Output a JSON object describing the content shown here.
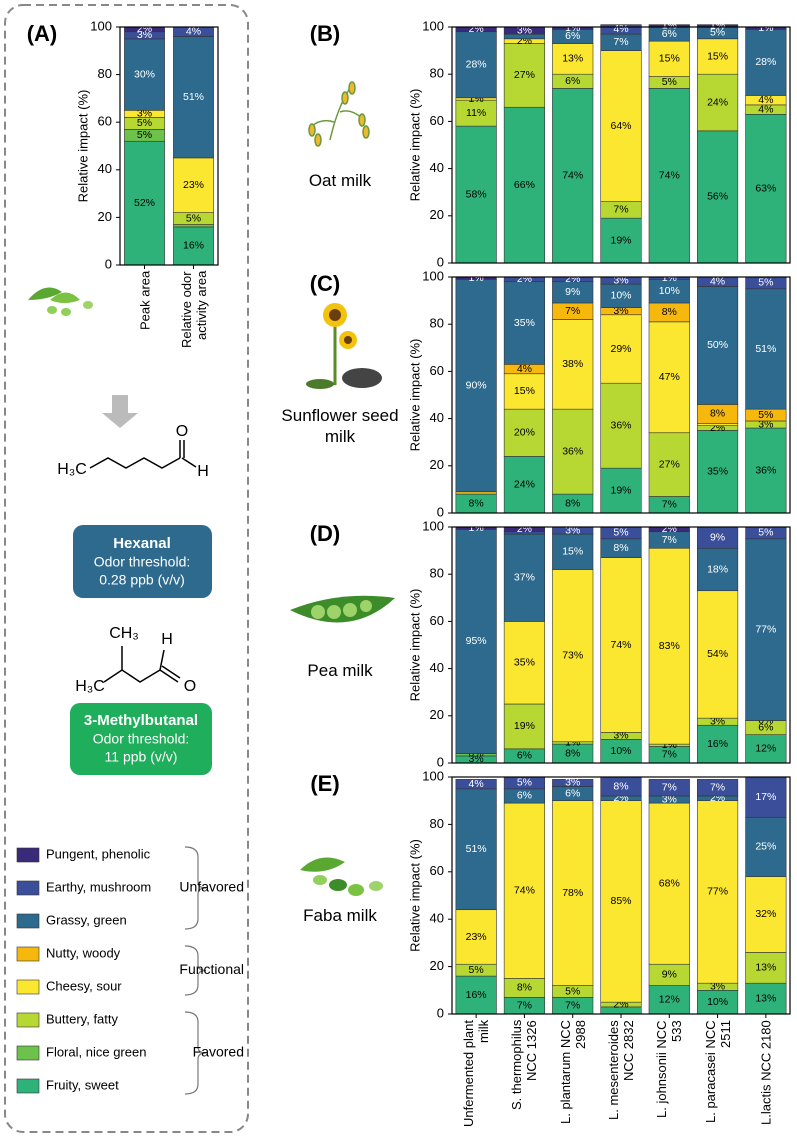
{
  "chart_data": [
    {
      "type": "bar",
      "stacked": true,
      "panel": "(A)",
      "ylabel": "Relative impact (%)",
      "ylim": [
        0,
        100
      ],
      "yticks": [
        0,
        20,
        40,
        60,
        80,
        100
      ],
      "categories": [
        "Peak area",
        "Relative odor activity area"
      ],
      "series": [
        {
          "values": [
            52,
            16
          ],
          "value_labels": [
            "52%",
            "16%"
          ]
        },
        {
          "values": [
            5,
            1
          ],
          "value_labels": [
            "5%",
            null
          ]
        },
        {
          "values": [
            5,
            5
          ],
          "value_labels": [
            "5%",
            "5%"
          ]
        },
        {
          "values": [
            3,
            23
          ],
          "value_labels": [
            "3%",
            "23%"
          ]
        },
        {
          "values": [
            0,
            0
          ],
          "value_labels": [
            null,
            null
          ]
        },
        {
          "values": [
            30,
            51
          ],
          "value_labels": [
            "30%",
            "51%"
          ]
        },
        {
          "values": [
            3,
            4
          ],
          "value_labels": [
            "3%",
            "4%"
          ]
        },
        {
          "values": [
            2,
            0
          ],
          "value_labels": [
            "2%",
            null
          ]
        }
      ]
    },
    {
      "type": "bar",
      "stacked": true,
      "panel": "(B)",
      "subtitle": "Oat milk",
      "ylabel": "Relative impact (%)",
      "ylim": [
        0,
        100
      ],
      "yticks": [
        0,
        20,
        40,
        60,
        80,
        100
      ],
      "series": [
        {
          "values": [
            58,
            66,
            74,
            19,
            74,
            56,
            63
          ],
          "value_labels": [
            "58%",
            "66%",
            "74%",
            "19%",
            "74%",
            "56%",
            "63%"
          ]
        },
        {
          "values": [
            0,
            0,
            0,
            0,
            0,
            0,
            0
          ],
          "value_labels": [
            null,
            null,
            null,
            null,
            null,
            null,
            null
          ]
        },
        {
          "values": [
            11,
            27,
            6,
            7,
            5,
            24,
            4
          ],
          "value_labels": [
            "11%",
            "27%",
            "6%",
            "7%",
            "5%",
            "24%",
            "4%"
          ]
        },
        {
          "values": [
            1,
            2,
            13,
            64,
            15,
            15,
            4
          ],
          "value_labels": [
            "1%",
            "2%",
            "13%",
            "64%",
            "15%",
            "15%",
            "4%"
          ]
        },
        {
          "values": [
            0,
            0,
            0,
            0,
            0,
            0,
            0
          ],
          "value_labels": [
            null,
            null,
            null,
            null,
            null,
            null,
            null
          ]
        },
        {
          "values": [
            28,
            2,
            6,
            7,
            6,
            5,
            28
          ],
          "value_labels": [
            "28%",
            null,
            "6%",
            "7%",
            "6%",
            "5%",
            "28%"
          ]
        },
        {
          "values": [
            0,
            0,
            0,
            4,
            0,
            0,
            0
          ],
          "value_labels": [
            null,
            null,
            null,
            "4%",
            null,
            null,
            null
          ]
        },
        {
          "values": [
            2,
            3,
            1,
            0,
            1,
            1,
            1
          ],
          "value_labels": [
            "2%",
            "3%",
            "1%",
            null,
            "1%",
            "1%",
            "1%"
          ]
        }
      ]
    },
    {
      "type": "bar",
      "stacked": true,
      "panel": "(C)",
      "subtitle": "Sunflower seed milk",
      "ylabel": "Relative impact (%)",
      "ylim": [
        0,
        100
      ],
      "yticks": [
        0,
        20,
        40,
        60,
        80,
        100
      ],
      "series": [
        {
          "values": [
            8,
            24,
            8,
            19,
            7,
            35,
            36
          ],
          "value_labels": [
            "8%",
            "24%",
            "8%",
            "19%",
            "7%",
            "35%",
            "36%"
          ]
        },
        {
          "values": [
            0,
            0,
            0,
            0,
            0,
            0,
            0
          ],
          "value_labels": [
            null,
            null,
            null,
            null,
            null,
            null,
            null
          ]
        },
        {
          "values": [
            0,
            20,
            36,
            36,
            27,
            2,
            3
          ],
          "value_labels": [
            null,
            "20%",
            "36%",
            "36%",
            "27%",
            "2%",
            "3%"
          ]
        },
        {
          "values": [
            0,
            15,
            38,
            29,
            47,
            1,
            0
          ],
          "value_labels": [
            null,
            "15%",
            "38%",
            "29%",
            "47%",
            null,
            null
          ]
        },
        {
          "values": [
            1,
            4,
            7,
            3,
            8,
            8,
            5
          ],
          "value_labels": [
            null,
            "4%",
            "7%",
            "3%",
            "8%",
            "8%",
            "5%"
          ]
        },
        {
          "values": [
            90,
            35,
            9,
            10,
            10,
            50,
            51
          ],
          "value_labels": [
            "90%",
            "35%",
            "9%",
            "10%",
            "10%",
            "50%",
            "51%"
          ]
        },
        {
          "values": [
            0,
            2,
            2,
            3,
            1,
            4,
            5
          ],
          "value_labels": [
            null,
            "2%",
            "2%",
            "3%",
            "1%",
            "4%",
            "5%"
          ]
        },
        {
          "values": [
            1,
            0,
            0,
            0,
            0,
            0,
            0
          ],
          "value_labels": [
            "1%",
            null,
            null,
            null,
            null,
            null,
            null
          ]
        }
      ]
    },
    {
      "type": "bar",
      "stacked": true,
      "panel": "(D)",
      "subtitle": "Pea milk",
      "ylabel": "Relative impact (%)",
      "ylim": [
        0,
        100
      ],
      "yticks": [
        0,
        20,
        40,
        60,
        80,
        100
      ],
      "series": [
        {
          "values": [
            3,
            6,
            8,
            10,
            7,
            16,
            12
          ],
          "value_labels": [
            "3%",
            "6%",
            "8%",
            "10%",
            "7%",
            "16%",
            "12%"
          ]
        },
        {
          "values": [
            1,
            0,
            0,
            0,
            0,
            0,
            0
          ],
          "value_labels": [
            null,
            null,
            null,
            null,
            null,
            null,
            null
          ]
        },
        {
          "values": [
            0,
            19,
            1,
            3,
            1,
            3,
            6
          ],
          "value_labels": [
            null,
            "19%",
            "1%",
            "3%",
            "1%",
            "3%",
            "6%"
          ]
        },
        {
          "values": [
            0,
            35,
            73,
            74,
            83,
            54,
            0
          ],
          "value_labels": [
            "0%",
            "35%",
            "73%",
            "74%",
            "83%",
            "54%",
            "0%"
          ]
        },
        {
          "values": [
            0,
            0,
            0,
            0,
            0,
            0,
            0
          ],
          "value_labels": [
            null,
            null,
            null,
            null,
            null,
            null,
            null
          ]
        },
        {
          "values": [
            95,
            37,
            15,
            8,
            7,
            18,
            77
          ],
          "value_labels": [
            "95%",
            "37%",
            "15%",
            "8%",
            "7%",
            "18%",
            "77%"
          ]
        },
        {
          "values": [
            0,
            1,
            3,
            5,
            0,
            9,
            5
          ],
          "value_labels": [
            null,
            null,
            "3%",
            "5%",
            null,
            "9%",
            "5%"
          ]
        },
        {
          "values": [
            1,
            2,
            0,
            0,
            2,
            0,
            0
          ],
          "value_labels": [
            "1%",
            "2%",
            null,
            null,
            "2%",
            null,
            null
          ]
        }
      ]
    },
    {
      "type": "bar",
      "stacked": true,
      "panel": "(E)",
      "subtitle": "Faba milk",
      "ylabel": "Relative impact (%)",
      "ylim": [
        0,
        100
      ],
      "yticks": [
        0,
        20,
        40,
        60,
        80,
        100
      ],
      "categories": [
        "Unfermented plant milk",
        "S. thermophilus NCC 1326",
        "L. plantarum NCC 2988",
        "L. mesenteroides NCC 2832",
        "L. johnsonii NCC 533",
        "L. paracasei NCC 2511",
        "L.lactis NCC 2180"
      ],
      "series": [
        {
          "values": [
            16,
            7,
            7,
            3,
            12,
            10,
            13
          ],
          "value_labels": [
            "16%",
            "7%",
            "7%",
            null,
            "12%",
            "10%",
            "13%"
          ]
        },
        {
          "values": [
            0,
            0,
            0,
            0,
            0,
            0,
            0
          ],
          "value_labels": [
            null,
            null,
            null,
            null,
            null,
            null,
            null
          ]
        },
        {
          "values": [
            5,
            8,
            5,
            2,
            9,
            3,
            13
          ],
          "value_labels": [
            "5%",
            "8%",
            "5%",
            "2%",
            "9%",
            "3%",
            "13%"
          ]
        },
        {
          "values": [
            23,
            74,
            78,
            85,
            68,
            77,
            32
          ],
          "value_labels": [
            "23%",
            "74%",
            "78%",
            "85%",
            "68%",
            "77%",
            "32%"
          ]
        },
        {
          "values": [
            0,
            0,
            0,
            0,
            0,
            0,
            0
          ],
          "value_labels": [
            null,
            null,
            null,
            null,
            null,
            null,
            null
          ]
        },
        {
          "values": [
            51,
            6,
            6,
            2,
            3,
            2,
            25
          ],
          "value_labels": [
            "51%",
            "6%",
            "6%",
            "2%",
            "3%",
            "2%",
            "25%"
          ]
        },
        {
          "values": [
            4,
            5,
            3,
            8,
            7,
            7,
            17
          ],
          "value_labels": [
            "4%",
            "5%",
            "3%",
            "8%",
            "7%",
            "7%",
            "17%"
          ]
        },
        {
          "values": [
            0,
            0,
            0,
            0,
            0,
            0,
            0
          ],
          "value_labels": [
            null,
            null,
            null,
            null,
            null,
            null,
            null
          ]
        }
      ]
    }
  ],
  "legend": {
    "items": [
      {
        "name": "Fruity, sweet",
        "color": "#2fb27a"
      },
      {
        "name": "Floral, nice green",
        "color": "#6cc24a"
      },
      {
        "name": "Buttery, fatty",
        "color": "#b7d832"
      },
      {
        "name": "Cheesy, sour",
        "color": "#fbe630"
      },
      {
        "name": "Nutty, woody",
        "color": "#f6b80c"
      },
      {
        "name": "Grassy, green",
        "color": "#2d6a8e"
      },
      {
        "name": "Earthy, mushroom",
        "color": "#3b4e9a"
      },
      {
        "name": "Pungent, phenolic",
        "color": "#3a2a7a"
      }
    ],
    "groups": [
      {
        "label": "Unfavored"
      },
      {
        "label": "Functional"
      },
      {
        "label": "Favored"
      }
    ]
  },
  "molecules": [
    {
      "atoms": [
        "H₃C",
        "O",
        "H"
      ],
      "name": "Hexanal",
      "threshold_label": "Odor threshold:",
      "threshold": "0.28 ppb (v/v)"
    },
    {
      "atoms": [
        "CH₃",
        "H",
        "H₃C",
        "O"
      ],
      "name": "3-Methylbutanal",
      "threshold_label": "Odor threshold:",
      "threshold": "11 ppb (v/v)"
    }
  ]
}
